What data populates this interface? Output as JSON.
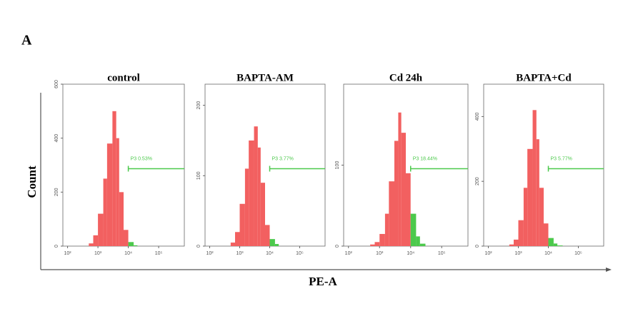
{
  "panel_label": "A",
  "y_label": "Count",
  "x_label": "PE-A",
  "chart_data": [
    {
      "type": "histogram",
      "title": "control",
      "color": "#f26060",
      "gate_color": "#4cc94c",
      "bins": [
        300,
        500,
        700,
        1000,
        1500,
        2000,
        3000,
        4000,
        5000,
        7000,
        10000,
        15000,
        20000,
        30000,
        50000
      ],
      "counts": [
        0,
        10,
        40,
        120,
        250,
        380,
        500,
        400,
        200,
        60,
        15,
        3,
        0,
        0
      ],
      "gate": {
        "value": 10000,
        "label": "P3 0.53%"
      },
      "xlim": [
        70,
        700000
      ],
      "log_x": true,
      "xticks": [
        {
          "value": 100,
          "label": "10²"
        },
        {
          "value": 1000,
          "label": "10³"
        },
        {
          "value": 10000,
          "label": "10⁴"
        },
        {
          "value": 100000,
          "label": "10⁵"
        }
      ],
      "ylim": [
        0,
        600
      ],
      "yticks": [
        0,
        200,
        400,
        600
      ]
    },
    {
      "type": "histogram",
      "title": "BAPTA-AM",
      "color": "#f26060",
      "gate_color": "#4cc94c",
      "bins": [
        300,
        500,
        700,
        1000,
        1500,
        2000,
        3000,
        4000,
        5000,
        7000,
        10000,
        15000,
        20000,
        30000,
        50000
      ],
      "counts": [
        0,
        5,
        20,
        60,
        110,
        150,
        170,
        140,
        90,
        30,
        10,
        3,
        0,
        0
      ],
      "gate": {
        "value": 10000,
        "label": "P3 3.77%"
      },
      "xlim": [
        70,
        700000
      ],
      "log_x": true,
      "xticks": [
        {
          "value": 100,
          "label": "10²"
        },
        {
          "value": 1000,
          "label": "10³"
        },
        {
          "value": 10000,
          "label": "10⁴"
        },
        {
          "value": 100000,
          "label": "10⁵"
        }
      ],
      "ylim": [
        0,
        230
      ],
      "yticks": [
        0,
        100,
        200
      ]
    },
    {
      "type": "histogram",
      "title": "Cd 24h",
      "color": "#f26060",
      "gate_color": "#4cc94c",
      "bins": [
        300,
        500,
        700,
        1000,
        1500,
        2000,
        3000,
        4000,
        5000,
        7000,
        10000,
        15000,
        20000,
        30000,
        50000
      ],
      "counts": [
        0,
        2,
        5,
        15,
        40,
        80,
        130,
        165,
        140,
        90,
        40,
        12,
        3,
        0
      ],
      "gate": {
        "value": 10000,
        "label": "P3 18.44%"
      },
      "xlim": [
        70,
        700000
      ],
      "log_x": true,
      "xticks": [
        {
          "value": 100,
          "label": "10²"
        },
        {
          "value": 1000,
          "label": "10³"
        },
        {
          "value": 10000,
          "label": "10⁴"
        },
        {
          "value": 100000,
          "label": "10⁵"
        }
      ],
      "ylim": [
        0,
        200
      ],
      "yticks": [
        0,
        100
      ]
    },
    {
      "type": "histogram",
      "title": "BAPTA+Cd",
      "color": "#f26060",
      "gate_color": "#4cc94c",
      "bins": [
        300,
        500,
        700,
        1000,
        1500,
        2000,
        3000,
        4000,
        5000,
        7000,
        10000,
        15000,
        20000,
        30000,
        50000
      ],
      "counts": [
        0,
        5,
        20,
        80,
        180,
        300,
        420,
        330,
        180,
        70,
        25,
        8,
        2,
        0
      ],
      "gate": {
        "value": 10000,
        "label": "P3 5.77%"
      },
      "xlim": [
        70,
        700000
      ],
      "log_x": true,
      "xticks": [
        {
          "value": 100,
          "label": "10²"
        },
        {
          "value": 1000,
          "label": "10³"
        },
        {
          "value": 10000,
          "label": "10⁴"
        },
        {
          "value": 100000,
          "label": "10⁵"
        }
      ],
      "ylim": [
        0,
        500
      ],
      "yticks": [
        0,
        200,
        400
      ]
    }
  ]
}
